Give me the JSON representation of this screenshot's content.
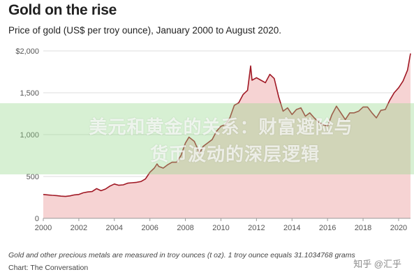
{
  "header": {
    "title": "Gold on the rise",
    "subtitle": "Price of gold (US$ per troy ounce), January 2000 to August 2020."
  },
  "footer": {
    "note": "Gold and other precious metals are measured in troy ounces (t oz). 1 troy ounce equals 31.1034768 grams",
    "source": "Chart: The Conversation"
  },
  "overlay": {
    "line1": "美元和黄金的关系：财富避险与",
    "line2": "货币波动的深层逻辑",
    "watermark": "知乎 @汇乎"
  },
  "colors": {
    "line": "#a01824",
    "area": "#f6d3d3",
    "grid": "#dedede",
    "axis": "#999999",
    "text": "#555555"
  },
  "chart_data": {
    "type": "area",
    "title": "Gold on the rise",
    "subtitle": "Price of gold (US$ per troy ounce), January 2000 to August 2020.",
    "xlabel": "",
    "ylabel": "",
    "xlim": [
      2000,
      2020.67
    ],
    "ylim": [
      0,
      2000
    ],
    "x_ticks": [
      2000,
      2002,
      2004,
      2006,
      2008,
      2010,
      2012,
      2014,
      2016,
      2018,
      2020
    ],
    "y_ticks": [
      0,
      500,
      1000,
      1500,
      2000
    ],
    "y_tick_labels": [
      "0",
      "500",
      "1,000",
      "1,500",
      "$2,000"
    ],
    "grid": true,
    "legend": "none",
    "series": [
      {
        "x": [
          2000.0,
          2000.25,
          2000.5,
          2000.75,
          2001.0,
          2001.25,
          2001.5,
          2001.75,
          2002.0,
          2002.25,
          2002.5,
          2002.75,
          2003.0,
          2003.25,
          2003.5,
          2003.75,
          2004.0,
          2004.25,
          2004.5,
          2004.75,
          2005.0,
          2005.25,
          2005.5,
          2005.75,
          2006.0,
          2006.25,
          2006.4,
          2006.5,
          2006.75,
          2007.0,
          2007.25,
          2007.5,
          2007.75,
          2008.0,
          2008.2,
          2008.5,
          2008.8,
          2009.0,
          2009.25,
          2009.5,
          2009.75,
          2010.0,
          2010.25,
          2010.5,
          2010.75,
          2011.0,
          2011.25,
          2011.5,
          2011.67,
          2011.75,
          2012.0,
          2012.25,
          2012.5,
          2012.75,
          2013.0,
          2013.25,
          2013.5,
          2013.75,
          2014.0,
          2014.25,
          2014.5,
          2014.75,
          2015.0,
          2015.25,
          2015.5,
          2015.75,
          2016.0,
          2016.25,
          2016.5,
          2016.75,
          2017.0,
          2017.25,
          2017.5,
          2017.75,
          2018.0,
          2018.25,
          2018.5,
          2018.75,
          2019.0,
          2019.25,
          2019.5,
          2019.75,
          2020.0,
          2020.25,
          2020.5,
          2020.67
        ],
        "y": [
          285,
          280,
          275,
          272,
          265,
          262,
          268,
          280,
          285,
          305,
          315,
          320,
          355,
          330,
          350,
          385,
          410,
          395,
          400,
          420,
          425,
          430,
          440,
          470,
          550,
          600,
          650,
          620,
          600,
          640,
          670,
          670,
          750,
          900,
          970,
          920,
          780,
          860,
          900,
          940,
          1040,
          1100,
          1120,
          1200,
          1350,
          1380,
          1480,
          1530,
          1820,
          1650,
          1680,
          1650,
          1620,
          1720,
          1670,
          1450,
          1280,
          1320,
          1240,
          1300,
          1320,
          1220,
          1260,
          1200,
          1150,
          1120,
          1100,
          1240,
          1340,
          1260,
          1180,
          1260,
          1260,
          1280,
          1330,
          1330,
          1260,
          1200,
          1290,
          1300,
          1410,
          1500,
          1560,
          1640,
          1770,
          1970
        ]
      }
    ]
  }
}
